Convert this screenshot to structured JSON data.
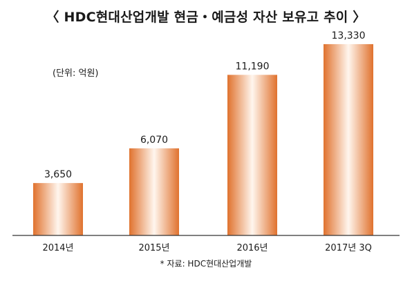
{
  "chart_data": {
    "type": "bar",
    "title": "〈 HDC현대산업개발 현금・예금성 자산 보유고 추이 〉",
    "unit_label": "(단위: 억원)",
    "categories": [
      "2014년",
      "2015년",
      "2016년",
      "2017년 3Q"
    ],
    "values": [
      3650,
      6070,
      11190,
      13330
    ],
    "value_labels": [
      "3,650",
      "6,070",
      "11,190",
      "13,330"
    ],
    "ylim": [
      0,
      14000
    ],
    "grid": false,
    "source": "* 자료: HDC현대산업개발",
    "colors": {
      "bar_edge": "#e0722e",
      "bar_center": "#fff6ee",
      "axis": "#333333"
    }
  }
}
